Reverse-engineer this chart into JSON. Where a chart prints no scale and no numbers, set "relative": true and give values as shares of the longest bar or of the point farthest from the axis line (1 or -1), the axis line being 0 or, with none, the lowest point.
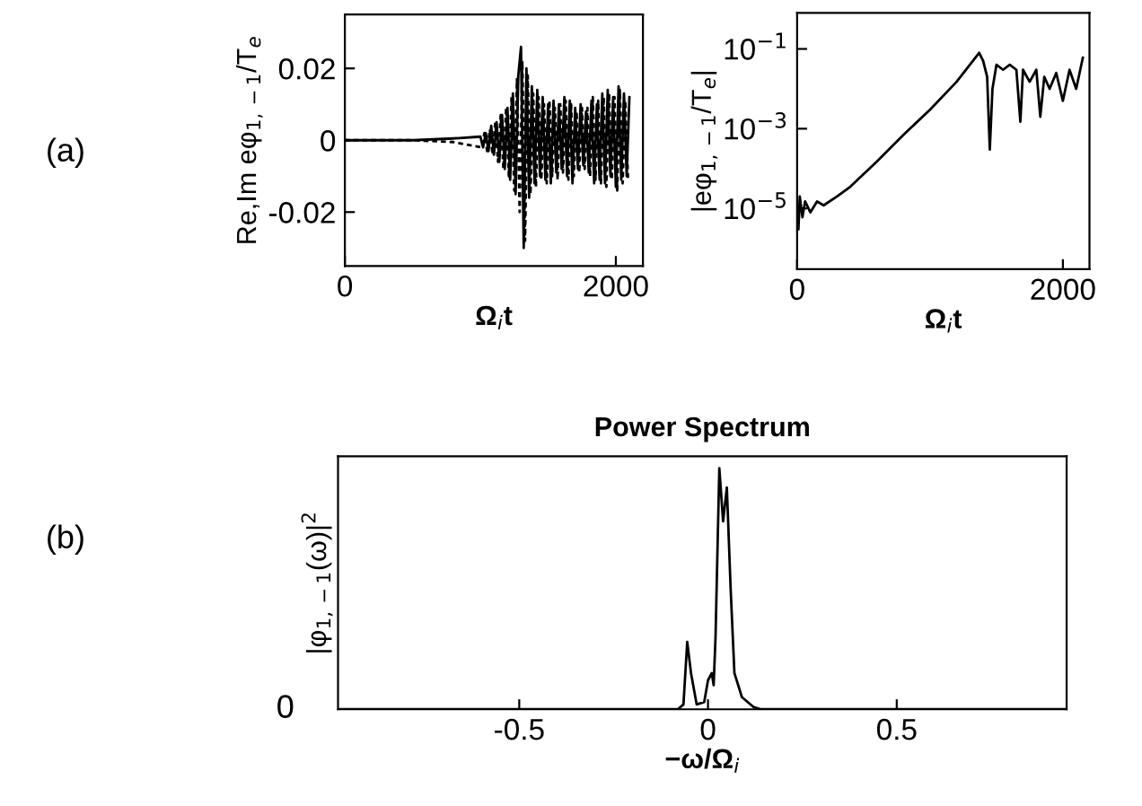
{
  "chart_data": [
    {
      "type": "line",
      "xlabel": "Ω$_{i}$t",
      "ylabel": "Re,Im eφ$_{1,−1}$/T$_{e}$",
      "annotations": [
        "(a)"
      ],
      "xlim": [
        0,
        2200
      ],
      "xticks": [
        0,
        2000
      ],
      "ylim": [
        -0.035,
        0.035
      ],
      "yticks": [
        0.02,
        0,
        -0.02
      ],
      "series": [
        {
          "color": "#000000",
          "line_style": "solid",
          "x": [
            0,
            500,
            800,
            1000,
            1020,
            1040,
            1060,
            1080,
            1100,
            1120,
            1140,
            1160,
            1180,
            1200,
            1220,
            1240,
            1260,
            1280,
            1300,
            1320,
            1340,
            1360,
            1380,
            1400,
            1420,
            1440,
            1460,
            1480,
            1500,
            1520,
            1540,
            1560,
            1580,
            1600,
            1620,
            1640,
            1660,
            1680,
            1700,
            1720,
            1740,
            1760,
            1780,
            1800,
            1820,
            1840,
            1860,
            1880,
            1900,
            1920,
            1940,
            1960,
            1980,
            2000,
            2020,
            2040,
            2060,
            2080,
            2100
          ],
          "values": [
            0,
            0,
            0.0005,
            0.001,
            -0.002,
            0.002,
            -0.003,
            0.004,
            -0.004,
            0.005,
            -0.006,
            0.007,
            -0.008,
            0.009,
            -0.011,
            0.013,
            -0.015,
            0.018,
            0.026,
            -0.03,
            0.02,
            -0.016,
            0.015,
            -0.012,
            0.014,
            -0.01,
            0.012,
            -0.011,
            0.01,
            -0.012,
            0.011,
            -0.009,
            0.01,
            -0.008,
            0.012,
            -0.01,
            0.011,
            -0.012,
            0.009,
            -0.008,
            0.01,
            -0.007,
            0.008,
            -0.009,
            0.011,
            -0.012,
            0.01,
            -0.011,
            0.013,
            -0.012,
            0.014,
            -0.01,
            0.012,
            -0.013,
            0.015,
            -0.011,
            0.013,
            -0.01,
            0.012
          ]
        },
        {
          "color": "#000000",
          "line_style": "dashed",
          "x": [
            0,
            500,
            800,
            1010,
            1030,
            1050,
            1070,
            1090,
            1110,
            1130,
            1150,
            1170,
            1190,
            1210,
            1230,
            1250,
            1270,
            1290,
            1310,
            1330,
            1350,
            1370,
            1390,
            1410,
            1430,
            1450,
            1470,
            1490,
            1510,
            1530,
            1550,
            1570,
            1590,
            1610,
            1630,
            1650,
            1670,
            1690,
            1710,
            1730,
            1750,
            1770,
            1790,
            1810,
            1830,
            1850,
            1870,
            1890,
            1910,
            1930,
            1950,
            1970,
            1990,
            2010,
            2030,
            2050,
            2070,
            2090
          ],
          "values": [
            0,
            0,
            -0.0005,
            -0.002,
            0.002,
            -0.003,
            0.003,
            -0.004,
            0.005,
            -0.006,
            0.007,
            -0.008,
            0.009,
            -0.01,
            0.012,
            -0.014,
            0.017,
            -0.02,
            0.022,
            -0.028,
            0.018,
            -0.015,
            0.013,
            -0.013,
            0.012,
            -0.011,
            0.01,
            -0.012,
            0.011,
            -0.01,
            0.009,
            -0.011,
            0.01,
            -0.009,
            0.011,
            -0.011,
            0.01,
            -0.01,
            0.008,
            -0.009,
            0.009,
            -0.008,
            0.009,
            -0.01,
            0.012,
            -0.011,
            0.011,
            -0.012,
            0.012,
            -0.013,
            0.013,
            -0.011,
            0.012,
            -0.014,
            0.014,
            -0.012,
            0.011,
            -0.011
          ]
        }
      ]
    },
    {
      "type": "line",
      "xlabel": "Ω$_{i}$t",
      "ylabel": "|eφ$_{1,−1}$/T$_{e}$|",
      "log": "y",
      "xlim": [
        0,
        2200
      ],
      "xticks": [
        0,
        2000
      ],
      "ylim": [
        3e-07,
        0.8
      ],
      "yticks": [
        {
          "value": 0.1,
          "label": "10$^{−1}$"
        },
        {
          "value": 0.001,
          "label": "10$^{−3}$"
        },
        {
          "value": 1e-05,
          "label": "10$^{−5}$"
        }
      ],
      "series": [
        {
          "color": "#000000",
          "line_style": "solid",
          "x": [
            0,
            10,
            20,
            40,
            60,
            100,
            150,
            200,
            300,
            400,
            600,
            800,
            1000,
            1200,
            1370,
            1400,
            1430,
            1450,
            1470,
            1500,
            1550,
            1600,
            1650,
            1680,
            1700,
            1750,
            1800,
            1830,
            1860,
            1900,
            1950,
            2000,
            2050,
            2100,
            2150
          ],
          "values": [
            1e-05,
            3e-06,
            2e-05,
            6e-06,
            1.5e-05,
            8e-06,
            1.5e-05,
            1.2e-05,
            2e-05,
            3.5e-05,
            0.00015,
            0.0007,
            0.003,
            0.015,
            0.08,
            0.05,
            0.02,
            0.0003,
            0.01,
            0.04,
            0.03,
            0.04,
            0.03,
            0.0015,
            0.03,
            0.015,
            0.03,
            0.002,
            0.02,
            0.01,
            0.025,
            0.005,
            0.03,
            0.01,
            0.06
          ]
        }
      ]
    },
    {
      "type": "line",
      "title": "Power Spectrum",
      "xlabel": "−ω/Ω$_{i}$",
      "ylabel": "|φ$_{1,−1}$(ω)|$^{2}$",
      "relative": true,
      "annotations": [
        "(b)",
        "0"
      ],
      "xlim": [
        -0.98,
        0.95
      ],
      "xticks": [
        -0.5,
        0,
        0.5
      ],
      "series": [
        {
          "color": "#000000",
          "line_style": "solid",
          "x": [
            -0.98,
            -0.08,
            -0.065,
            -0.055,
            -0.045,
            -0.03,
            -0.01,
            0.0,
            0.01,
            0.015,
            0.02,
            0.03,
            0.04,
            0.05,
            0.06,
            0.07,
            0.09,
            0.12,
            0.14,
            0.95
          ],
          "values": [
            0,
            0,
            0.02,
            0.28,
            0.15,
            0.02,
            0.03,
            0.12,
            0.15,
            0.1,
            0.3,
            1.0,
            0.78,
            0.92,
            0.5,
            0.15,
            0.05,
            0.01,
            0,
            0
          ]
        }
      ]
    }
  ]
}
